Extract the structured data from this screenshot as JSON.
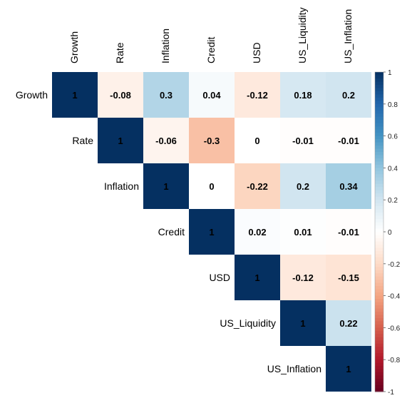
{
  "chart_data": {
    "type": "heatmap",
    "variables": [
      "Growth",
      "Rate",
      "Inflation",
      "Credit",
      "USD",
      "US_Liquidity",
      "US_Inflation"
    ],
    "matrix_upper": [
      [
        1,
        -0.08,
        0.3,
        0.04,
        -0.12,
        0.18,
        0.2
      ],
      [
        null,
        1,
        -0.06,
        -0.3,
        0,
        -0.01,
        -0.01
      ],
      [
        null,
        null,
        1,
        0,
        -0.22,
        0.2,
        0.34
      ],
      [
        null,
        null,
        null,
        1,
        0.02,
        0.01,
        -0.01
      ],
      [
        null,
        null,
        null,
        null,
        1,
        -0.12,
        -0.15
      ],
      [
        null,
        null,
        null,
        null,
        null,
        1,
        0.22
      ],
      [
        null,
        null,
        null,
        null,
        null,
        null,
        1
      ]
    ],
    "value_labels": [
      [
        "1",
        "-0.08",
        "0.3",
        "0.04",
        "-0.12",
        "0.18",
        "0.2"
      ],
      [
        null,
        "1",
        "-0.06",
        "-0.3",
        "0",
        "-0.01",
        "-0.01"
      ],
      [
        null,
        null,
        "1",
        "0",
        "-0.22",
        "0.2",
        "0.34"
      ],
      [
        null,
        null,
        null,
        "1",
        "0.02",
        "0.01",
        "-0.01"
      ],
      [
        null,
        null,
        null,
        null,
        "1",
        "-0.12",
        "-0.15"
      ],
      [
        null,
        null,
        null,
        null,
        null,
        "1",
        "0.22"
      ],
      [
        null,
        null,
        null,
        null,
        null,
        null,
        "1"
      ]
    ],
    "colorbar": {
      "range": [
        -1,
        1
      ],
      "ticks": [
        "1",
        "0.8",
        "0.6",
        "0.4",
        "0.2",
        "0",
        "-0.2",
        "-0.4",
        "-0.6",
        "-0.8",
        "-1"
      ],
      "colors": [
        "#67001f",
        "#b2182b",
        "#d6604d",
        "#f4a582",
        "#fddbc7",
        "#ffffff",
        "#d1e5f0",
        "#92c5de",
        "#4393c3",
        "#2166ac",
        "#053061"
      ]
    },
    "legend_placement": "right",
    "title": "",
    "xlabel": "",
    "ylabel": ""
  }
}
